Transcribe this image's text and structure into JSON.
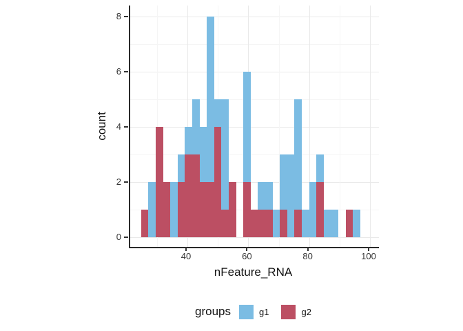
{
  "figure": {
    "x_axis_title": "nFeature_RNA",
    "y_axis_title": "count",
    "x_tick_labels": [
      "40",
      "60",
      "80",
      "100"
    ],
    "y_tick_labels": [
      "0",
      "2",
      "4",
      "6",
      "8"
    ],
    "legend": {
      "title": "groups",
      "items": [
        {
          "label": "g1",
          "color": "#7bbce3"
        },
        {
          "label": "g2",
          "color": "#bc4f63"
        }
      ]
    }
  },
  "colors": {
    "g1_blue": "#7bbce3",
    "g2_red": "#bc4f63",
    "axis_line": "#2a2a2a",
    "tick_text": "#333333",
    "grid_major": "#e9e9e9",
    "grid_minor": "#f5f5f5",
    "background": "#ffffff"
  },
  "chart_data": {
    "type": "bar",
    "subtype": "overlaid-histogram",
    "title": "",
    "xlabel": "nFeature_RNA",
    "ylabel": "count",
    "bin_width": 2.4,
    "bin_centers": [
      26.0,
      28.4,
      30.8,
      33.2,
      35.6,
      38.0,
      40.4,
      42.8,
      45.2,
      47.6,
      50.0,
      52.4,
      54.8,
      57.2,
      59.6,
      62.0,
      64.4,
      66.8,
      69.2,
      71.6,
      74.0,
      76.4,
      78.8,
      81.2,
      83.6,
      86.0,
      88.4,
      90.8,
      93.2,
      95.6
    ],
    "series": [
      {
        "name": "g1",
        "color": "#7bbce3",
        "values": [
          0,
          2,
          0,
          0,
          2,
          3,
          4,
          5,
          4,
          8,
          5,
          5,
          0,
          0,
          6,
          0,
          2,
          2,
          1,
          3,
          3,
          5,
          1,
          2,
          3,
          1,
          1,
          0,
          0,
          1
        ]
      },
      {
        "name": "g2",
        "color": "#bc4f63",
        "values": [
          1,
          0,
          4,
          2,
          0,
          2,
          3,
          3,
          2,
          2,
          4,
          1,
          2,
          0,
          2,
          1,
          1,
          1,
          0,
          1,
          0,
          1,
          0,
          0,
          2,
          0,
          0,
          0,
          1,
          0
        ]
      }
    ],
    "draw_order": "g1 drawn first, g2 drawn opaque on top (position identity)",
    "xlim": [
      23.2,
      98.4
    ],
    "ylim": [
      0,
      8.4
    ],
    "x_axis_ticks": [
      40,
      60,
      80,
      100
    ],
    "y_axis_ticks": [
      0,
      2,
      4,
      6,
      8
    ],
    "x_minor_gridlines": [
      30,
      50,
      70,
      90
    ],
    "y_minor_gridlines": [
      1,
      3,
      5,
      7
    ],
    "grid": true,
    "legend_position": "bottom"
  }
}
